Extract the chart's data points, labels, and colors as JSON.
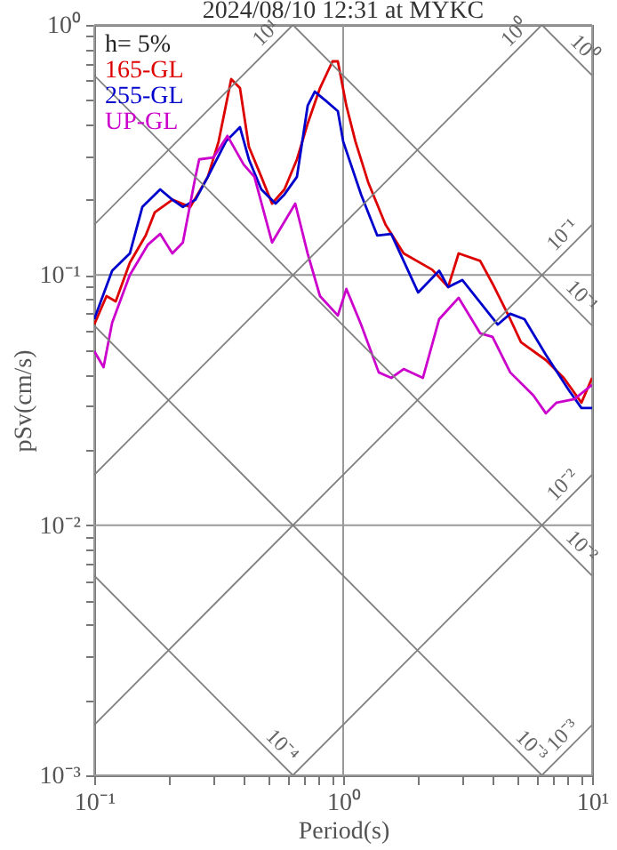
{
  "chart_data": {
    "type": "line",
    "title": "2024/08/10 12:31 at MYKC",
    "xlabel": "Period(s)",
    "ylabel": "pSv(cm/s)",
    "annotations": [
      "h= 5%"
    ],
    "log": "xy",
    "grid": true,
    "legend": "top left",
    "line_style": "solid",
    "xlim": [
      0.1,
      10
    ],
    "ylim": [
      0.001,
      1
    ],
    "xticks": [
      {
        "value": 0.1,
        "label": "10⁻¹"
      },
      {
        "value": 0.2,
        "label": null
      },
      {
        "value": 0.3,
        "label": null
      },
      {
        "value": 0.4,
        "label": null
      },
      {
        "value": 0.5,
        "label": null
      },
      {
        "value": 0.6,
        "label": null
      },
      {
        "value": 0.7,
        "label": null
      },
      {
        "value": 0.8,
        "label": null
      },
      {
        "value": 0.9,
        "label": null
      },
      {
        "value": 1,
        "label": "10⁰"
      },
      {
        "value": 2,
        "label": null
      },
      {
        "value": 3,
        "label": null
      },
      {
        "value": 4,
        "label": null
      },
      {
        "value": 5,
        "label": null
      },
      {
        "value": 6,
        "label": null
      },
      {
        "value": 7,
        "label": null
      },
      {
        "value": 8,
        "label": null
      },
      {
        "value": 9,
        "label": null
      },
      {
        "value": 10,
        "label": "10¹"
      }
    ],
    "yticks": [
      {
        "value": 0.001,
        "label": "10⁻³"
      },
      {
        "value": 0.002,
        "label": null
      },
      {
        "value": 0.003,
        "label": null
      },
      {
        "value": 0.004,
        "label": null
      },
      {
        "value": 0.005,
        "label": null
      },
      {
        "value": 0.006,
        "label": null
      },
      {
        "value": 0.007,
        "label": null
      },
      {
        "value": 0.008,
        "label": null
      },
      {
        "value": 0.009,
        "label": null
      },
      {
        "value": 0.01,
        "label": "10⁻²"
      },
      {
        "value": 0.02,
        "label": null
      },
      {
        "value": 0.03,
        "label": null
      },
      {
        "value": 0.04,
        "label": null
      },
      {
        "value": 0.05,
        "label": null
      },
      {
        "value": 0.06,
        "label": null
      },
      {
        "value": 0.07,
        "label": null
      },
      {
        "value": 0.08,
        "label": null
      },
      {
        "value": 0.09,
        "label": null
      },
      {
        "value": 0.1,
        "label": "10⁻¹"
      },
      {
        "value": 0.2,
        "label": null
      },
      {
        "value": 0.3,
        "label": null
      },
      {
        "value": 0.4,
        "label": null
      },
      {
        "value": 0.5,
        "label": null
      },
      {
        "value": 0.6,
        "label": null
      },
      {
        "value": 0.7,
        "label": null
      },
      {
        "value": 0.8,
        "label": null
      },
      {
        "value": 0.9,
        "label": null
      },
      {
        "value": 1,
        "label": "10⁰"
      }
    ],
    "series": [
      {
        "name": "165-GL",
        "color": "#dd0000",
        "x": [
          0.1,
          0.112,
          0.122,
          0.139,
          0.161,
          0.175,
          0.206,
          0.243,
          0.286,
          0.316,
          0.355,
          0.385,
          0.418,
          0.469,
          0.518,
          0.581,
          0.652,
          0.72,
          0.807,
          0.906,
          0.952,
          1.03,
          1.12,
          1.26,
          1.48,
          1.75,
          2.28,
          2.64,
          2.91,
          3.55,
          3.98,
          4.69,
          5.18,
          6.52,
          7.69,
          9.06,
          10
        ],
        "values": [
          0.0634,
          0.0824,
          0.0785,
          0.112,
          0.144,
          0.178,
          0.2,
          0.187,
          0.247,
          0.342,
          0.607,
          0.559,
          0.326,
          0.247,
          0.193,
          0.22,
          0.29,
          0.403,
          0.559,
          0.715,
          0.715,
          0.475,
          0.342,
          0.235,
          0.159,
          0.122,
          0.105,
          0.0895,
          0.122,
          0.114,
          0.0924,
          0.0666,
          0.0539,
          0.0457,
          0.0388,
          0.0309,
          0.0388
        ]
      },
      {
        "name": "255-GL",
        "color": "#0000cc",
        "x": [
          0.1,
          0.118,
          0.139,
          0.156,
          0.184,
          0.206,
          0.227,
          0.255,
          0.286,
          0.338,
          0.385,
          0.418,
          0.469,
          0.535,
          0.581,
          0.652,
          0.72,
          0.769,
          0.848,
          0.952,
          1.0,
          1.18,
          1.37,
          1.56,
          2.0,
          2.43,
          2.64,
          3.01,
          4.18,
          4.69,
          5.35,
          6.52,
          8.07,
          9.06,
          10
        ],
        "values": [
          0.0666,
          0.104,
          0.122,
          0.187,
          0.22,
          0.2,
          0.187,
          0.2,
          0.247,
          0.342,
          0.39,
          0.29,
          0.22,
          0.193,
          0.21,
          0.247,
          0.475,
          0.541,
          0.499,
          0.452,
          0.342,
          0.21,
          0.144,
          0.146,
          0.0852,
          0.104,
          0.0895,
          0.0955,
          0.0634,
          0.07,
          0.0666,
          0.048,
          0.0346,
          0.0294,
          0.0294
        ]
      },
      {
        "name": "UP-GL",
        "color": "#cc00cc",
        "x": [
          0.1,
          0.109,
          0.118,
          0.139,
          0.164,
          0.184,
          0.206,
          0.227,
          0.255,
          0.264,
          0.301,
          0.343,
          0.398,
          0.44,
          0.518,
          0.642,
          0.72,
          0.807,
          0.952,
          1.03,
          1.18,
          1.39,
          1.56,
          1.75,
          2.09,
          2.43,
          2.91,
          3.55,
          3.98,
          4.69,
          5.81,
          6.52,
          7.2,
          8.49,
          10
        ],
        "values": [
          0.0496,
          0.0428,
          0.0645,
          0.1,
          0.132,
          0.146,
          0.122,
          0.135,
          0.247,
          0.29,
          0.295,
          0.36,
          0.277,
          0.247,
          0.135,
          0.193,
          0.122,
          0.0824,
          0.0689,
          0.088,
          0.0634,
          0.0408,
          0.0388,
          0.0421,
          0.0388,
          0.0666,
          0.0811,
          0.0585,
          0.0566,
          0.0408,
          0.033,
          0.028,
          0.0309,
          0.0319,
          0.0364
        ]
      },
      {
        "name": "10¹",
        "type": "line",
        "color": "#808080",
        "x": [
          0.1,
          0.628
        ],
        "values": [
          0.159,
          1
        ]
      },
      {
        "name": "10⁰",
        "type": "line",
        "color": "#808080",
        "x": [
          0.1,
          6.283
        ],
        "values": [
          0.0159,
          1
        ]
      },
      {
        "name": "10⁻¹",
        "type": "line",
        "color": "#808080",
        "x": [
          0.1,
          10
        ],
        "values": [
          0.00159,
          0.159
        ]
      },
      {
        "name": "10⁻²",
        "type": "line",
        "color": "#808080",
        "x": [
          0.628,
          10
        ],
        "values": [
          0.001,
          0.0159
        ]
      },
      {
        "name": "10⁻³",
        "type": "line",
        "color": "#808080",
        "x": [
          6.283,
          10
        ],
        "values": [
          0.001,
          0.00159
        ]
      },
      {
        "name": "10⁰",
        "type": "line",
        "color": "#808080",
        "x": [
          6.283,
          10
        ],
        "values": [
          1,
          0.628
        ]
      },
      {
        "name": "10⁻¹",
        "type": "line",
        "color": "#808080",
        "x": [
          0.628,
          10
        ],
        "values": [
          1,
          0.0628
        ]
      },
      {
        "name": "10⁻²",
        "type": "line",
        "color": "#808080",
        "x": [
          0.1,
          10
        ],
        "values": [
          0.628,
          0.00628
        ]
      },
      {
        "name": "10⁻³",
        "type": "line",
        "color": "#808080",
        "x": [
          0.1,
          6.283
        ],
        "values": [
          0.0628,
          0.001
        ]
      },
      {
        "name": "10⁻⁴",
        "type": "line",
        "color": "#808080",
        "x": [
          0.1,
          0.628
        ],
        "values": [
          0.00628,
          0.001
        ]
      }
    ]
  }
}
